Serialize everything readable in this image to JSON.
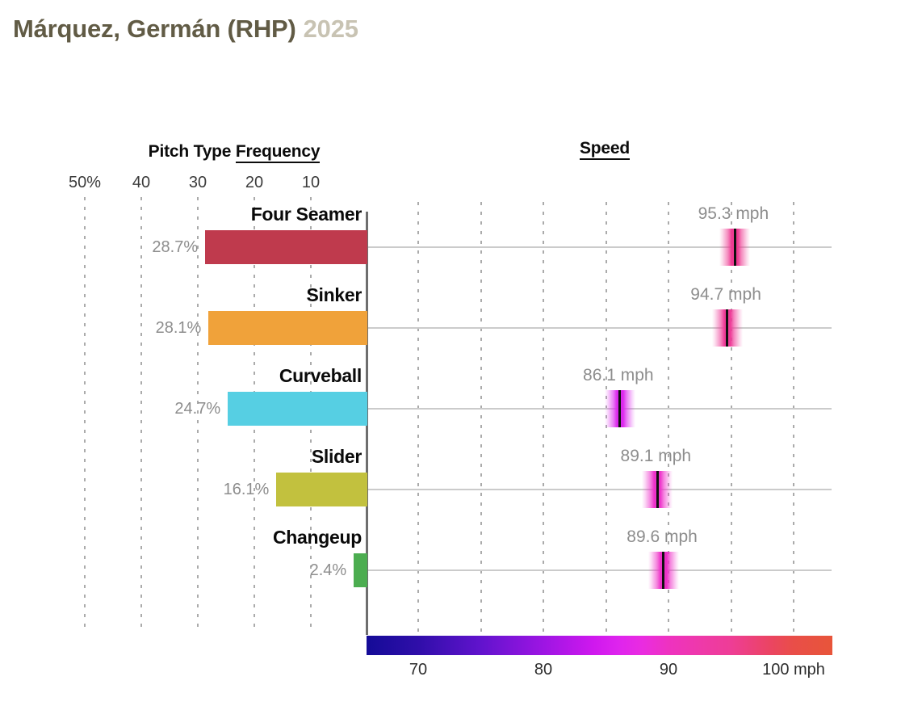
{
  "title": {
    "player": "Márquez, Germán (RHP)",
    "season": "2025"
  },
  "frequency_panel": {
    "header_prefix": "Pitch Type ",
    "header_underlined": "Frequency",
    "ticks": [
      {
        "label": "50%",
        "value": 50
      },
      {
        "label": "40",
        "value": 40
      },
      {
        "label": "30",
        "value": 30
      },
      {
        "label": "20",
        "value": 20
      },
      {
        "label": "10",
        "value": 10
      }
    ]
  },
  "speed_panel": {
    "header_underlined": "Speed",
    "gridline_mph": [
      70,
      75,
      80,
      85,
      90,
      95,
      100
    ],
    "ticks": [
      {
        "label": "70",
        "value": 70
      },
      {
        "label": "80",
        "value": 80
      },
      {
        "label": "90",
        "value": 90
      },
      {
        "label": "100 mph",
        "value": 100
      }
    ]
  },
  "pitches": [
    {
      "name": "Four Seamer",
      "frequency_label": "28.7%",
      "frequency_pct": 28.7,
      "speed_label": "95.3 mph",
      "speed_mph": 95.3,
      "bar_color": "#bf3a4d",
      "marker_color": "#ee3c93"
    },
    {
      "name": "Sinker",
      "frequency_label": "28.1%",
      "frequency_pct": 28.1,
      "speed_label": "94.7 mph",
      "speed_mph": 94.7,
      "bar_color": "#f0a23a",
      "marker_color": "#ee3c98"
    },
    {
      "name": "Curveball",
      "frequency_label": "24.7%",
      "frequency_pct": 24.7,
      "speed_label": "86.1 mph",
      "speed_mph": 86.1,
      "bar_color": "#56cfe3",
      "marker_color": "#dc28ee"
    },
    {
      "name": "Slider",
      "frequency_label": "16.1%",
      "frequency_pct": 16.1,
      "speed_label": "89.1 mph",
      "speed_mph": 89.1,
      "bar_color": "#c2c13e",
      "marker_color": "#ee33cb"
    },
    {
      "name": "Changeup",
      "frequency_label": "2.4%",
      "frequency_pct": 2.4,
      "speed_label": "89.6 mph",
      "speed_mph": 89.6,
      "bar_color": "#4cad50",
      "marker_color": "#ee33c8"
    }
  ],
  "legend": {
    "gradient_stops": [
      {
        "mph": 65.9,
        "color": "#140b97"
      },
      {
        "mph": 70,
        "color": "#2f0ea9"
      },
      {
        "mph": 75,
        "color": "#6113cd"
      },
      {
        "mph": 80,
        "color": "#9d15e3"
      },
      {
        "mph": 84,
        "color": "#cf18ee"
      },
      {
        "mph": 86,
        "color": "#de24ee"
      },
      {
        "mph": 88,
        "color": "#ea2ce0"
      },
      {
        "mph": 90,
        "color": "#ee32c0"
      },
      {
        "mph": 93,
        "color": "#ee3aa6"
      },
      {
        "mph": 95,
        "color": "#ee3d96"
      },
      {
        "mph": 98,
        "color": "#eb4464"
      },
      {
        "mph": 100,
        "color": "#e94e48"
      },
      {
        "mph": 103.1,
        "color": "#e8553a"
      }
    ]
  },
  "chart_data": {
    "type": "bar",
    "title": "Márquez, Germán (RHP) 2025",
    "categories": [
      "Four Seamer",
      "Sinker",
      "Curveball",
      "Slider",
      "Changeup"
    ],
    "series": [
      {
        "name": "Pitch Type Frequency",
        "unit": "%",
        "values": [
          28.7,
          28.1,
          24.7,
          16.1,
          2.4
        ]
      },
      {
        "name": "Speed",
        "unit": "mph",
        "values": [
          95.3,
          94.7,
          86.1,
          89.1,
          89.6
        ]
      }
    ],
    "frequency_axis": {
      "ticks": [
        "50%",
        "40",
        "30",
        "20",
        "10"
      ],
      "range": [
        0,
        55
      ],
      "orientation": "horizontal-right-to-left",
      "grid": "dashed-vertical"
    },
    "speed_axis": {
      "ticks": [
        "70",
        "80",
        "90",
        "100 mph"
      ],
      "range": [
        65.9,
        103.1
      ],
      "gridlines_every_mph": 5,
      "grid": "dashed-vertical"
    },
    "legend_position": "bottom",
    "legend_type": "color-gradient 70-100 mph (navy→purple→magenta→pink→red)"
  }
}
